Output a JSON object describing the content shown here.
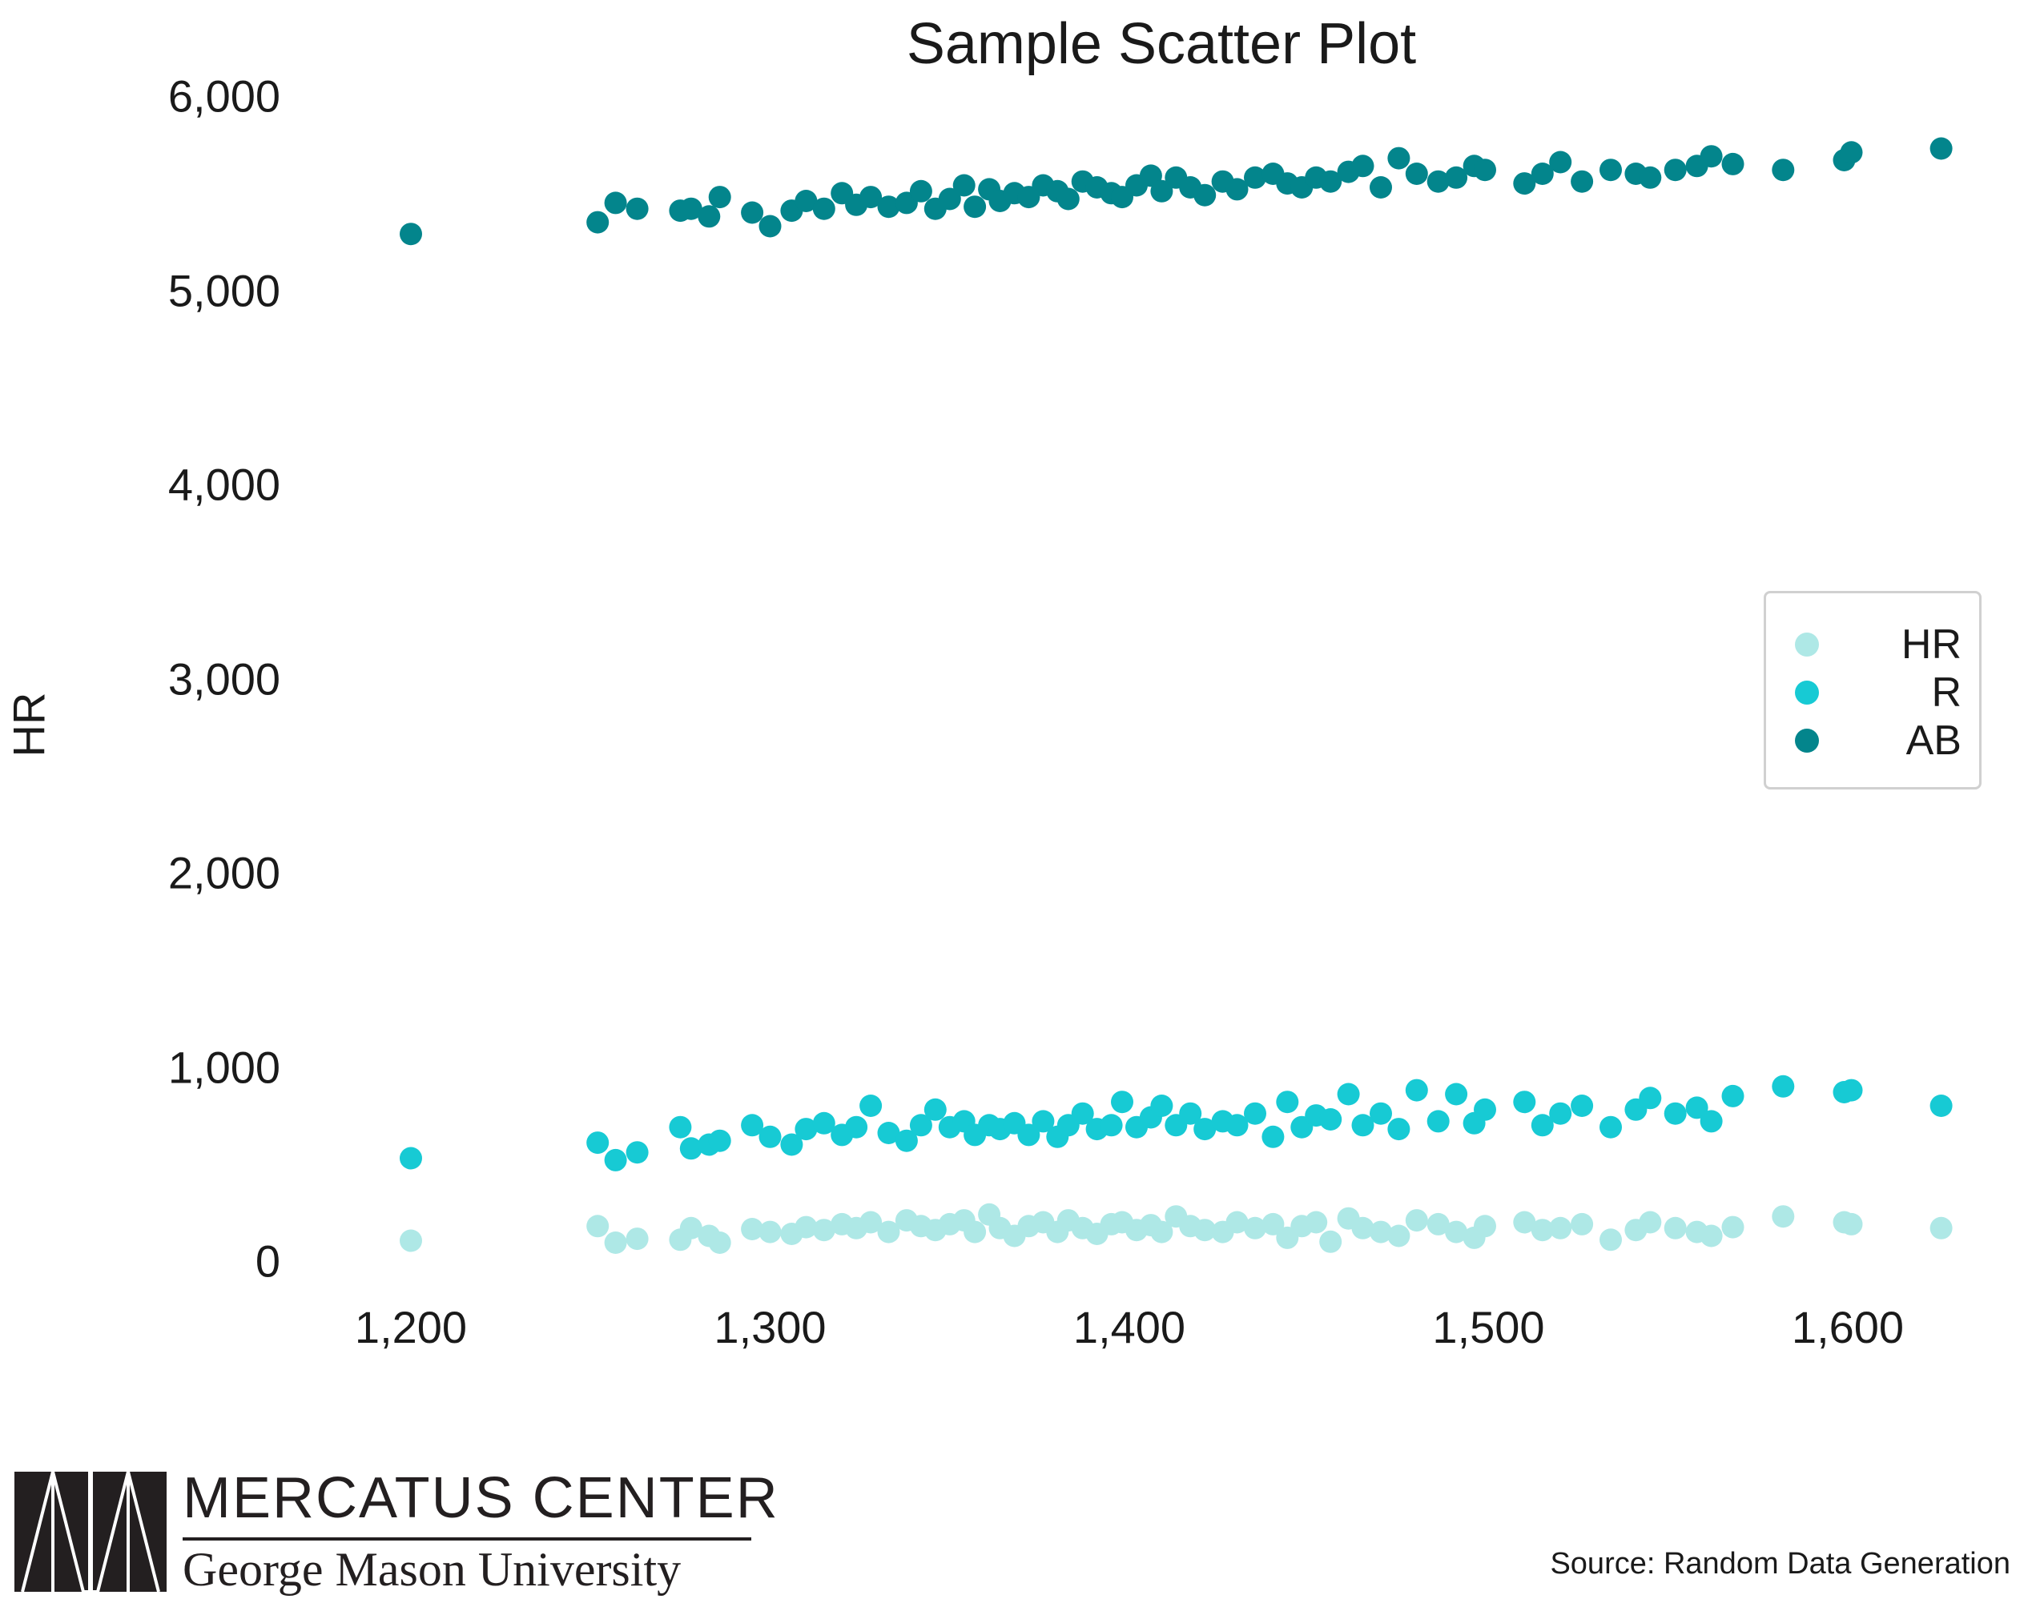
{
  "chart_data": {
    "type": "scatter",
    "title": "Sample Scatter Plot",
    "xlabel": "",
    "ylabel": "HR",
    "xlim": [
      1170,
      1640
    ],
    "ylim": [
      -200,
      6150
    ],
    "xticks": [
      1200,
      1300,
      1400,
      1500,
      1600
    ],
    "xtick_labels": [
      "1,200",
      "1,300",
      "1,400",
      "1,500",
      "1,600"
    ],
    "yticks": [
      0,
      1000,
      2000,
      3000,
      4000,
      5000,
      6000
    ],
    "ytick_labels": [
      "0",
      "1,000",
      "2,000",
      "3,000",
      "4,000",
      "5,000",
      "6,000"
    ],
    "grid": false,
    "legend_position": "right",
    "x": [
      1200,
      1252,
      1257,
      1263,
      1275,
      1278,
      1283,
      1286,
      1295,
      1300,
      1306,
      1310,
      1315,
      1320,
      1324,
      1328,
      1333,
      1338,
      1342,
      1346,
      1350,
      1354,
      1357,
      1361,
      1364,
      1368,
      1372,
      1376,
      1380,
      1383,
      1387,
      1391,
      1395,
      1398,
      1402,
      1406,
      1409,
      1413,
      1417,
      1421,
      1426,
      1430,
      1435,
      1440,
      1444,
      1448,
      1452,
      1456,
      1461,
      1465,
      1470,
      1475,
      1480,
      1486,
      1491,
      1496,
      1499,
      1510,
      1515,
      1520,
      1526,
      1534,
      1541,
      1545,
      1552,
      1558,
      1562,
      1568,
      1582,
      1599,
      1601,
      1626
    ],
    "series": [
      {
        "name": "HR",
        "color": "#aee8e6",
        "values": [
          105,
          180,
          95,
          115,
          110,
          170,
          130,
          95,
          165,
          150,
          140,
          175,
          160,
          190,
          170,
          200,
          150,
          210,
          180,
          160,
          190,
          210,
          150,
          240,
          170,
          130,
          180,
          200,
          150,
          210,
          170,
          140,
          190,
          200,
          160,
          185,
          150,
          230,
          180,
          160,
          150,
          200,
          170,
          190,
          120,
          180,
          200,
          100,
          220,
          170,
          150,
          130,
          210,
          190,
          150,
          120,
          180,
          200,
          160,
          170,
          190,
          110,
          160,
          200,
          170,
          150,
          130,
          175,
          230,
          200,
          190,
          170
        ]
      },
      {
        "name": "R",
        "color": "#17cad4",
        "values": [
          530,
          610,
          520,
          560,
          690,
          580,
          600,
          620,
          700,
          640,
          600,
          680,
          710,
          650,
          690,
          800,
          660,
          620,
          700,
          780,
          690,
          720,
          650,
          700,
          680,
          710,
          650,
          720,
          640,
          700,
          760,
          680,
          700,
          820,
          690,
          740,
          800,
          700,
          760,
          680,
          720,
          700,
          760,
          640,
          820,
          690,
          750,
          730,
          860,
          700,
          760,
          680,
          880,
          720,
          860,
          710,
          780,
          820,
          700,
          760,
          800,
          690,
          780,
          840,
          760,
          790,
          720,
          850,
          900,
          870,
          880,
          800
        ]
      },
      {
        "name": "AB",
        "color": "#03858c",
        "values": [
          5290,
          5350,
          5450,
          5420,
          5410,
          5420,
          5380,
          5480,
          5400,
          5330,
          5410,
          5460,
          5420,
          5500,
          5440,
          5480,
          5430,
          5450,
          5510,
          5420,
          5470,
          5540,
          5430,
          5520,
          5460,
          5500,
          5480,
          5540,
          5510,
          5470,
          5560,
          5530,
          5500,
          5480,
          5540,
          5590,
          5510,
          5580,
          5530,
          5490,
          5560,
          5520,
          5580,
          5600,
          5550,
          5530,
          5580,
          5560,
          5610,
          5640,
          5530,
          5680,
          5600,
          5560,
          5580,
          5640,
          5620,
          5550,
          5600,
          5660,
          5560,
          5620,
          5600,
          5580,
          5620,
          5640,
          5690,
          5650,
          5620,
          5670,
          5710,
          5730
        ]
      }
    ],
    "legend": [
      "HR",
      "R",
      "AB"
    ],
    "source": "Source: Random Data Generation"
  },
  "logo": {
    "name": "MERCATUS CENTER",
    "subtitle": "George Mason University"
  }
}
